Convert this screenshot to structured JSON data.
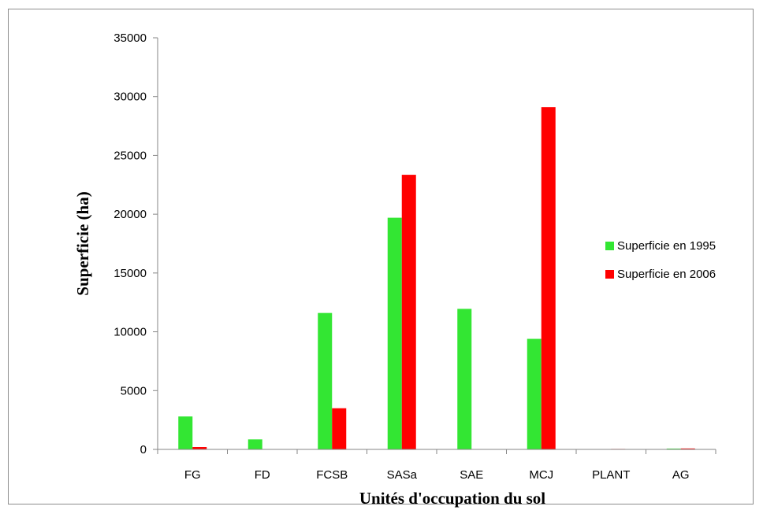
{
  "chart_data": {
    "type": "bar",
    "title": "",
    "xlabel": "Unités d'occupation du sol",
    "ylabel": "Superficie (ha)",
    "ylim": [
      0,
      35000
    ],
    "yticks": [
      "0",
      "5000",
      "10000",
      "15000",
      "20000",
      "25000",
      "30000",
      "35000"
    ],
    "grid": false,
    "legend_position": "right",
    "categories": [
      "FG",
      "FD",
      "FCSB",
      "SASa",
      "SAE",
      "MCJ",
      "PLANT",
      "AG"
    ],
    "series": [
      {
        "name": "Superficie en 1995",
        "color": "#33e633",
        "values": [
          2800,
          850,
          11600,
          19700,
          11950,
          9400,
          30,
          70
        ]
      },
      {
        "name": "Superficie en 2006",
        "color": "#ff0000",
        "values": [
          200,
          0,
          3500,
          23350,
          0,
          29100,
          40,
          80
        ]
      }
    ]
  }
}
